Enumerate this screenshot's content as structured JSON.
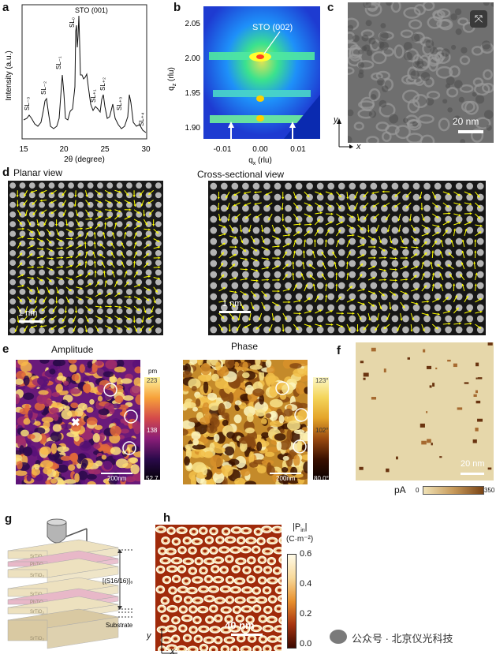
{
  "panels": {
    "a": {
      "letter": "a",
      "ylabel": "Intensity (a.u.)",
      "xlabel": "2θ (degree)",
      "xticks": [
        "15",
        "20",
        "25",
        "30"
      ],
      "peak_labels": {
        "sto": "STO (001)",
        "sl0": "SL₀",
        "slm1": "SL₋₁",
        "slm2": "SL₋₂",
        "slm3": "SL₋₃",
        "slp1": "SL₊₁",
        "slp2": "SL₊₂",
        "slp3": "SL₊₃",
        "slp4": "SL₊₄"
      }
    },
    "b": {
      "letter": "b",
      "annotation": "STO (002)",
      "ylabel": "q",
      "ylabel_sub": "z",
      "ylabel_unit": " (rlu)",
      "xlabel": "q",
      "xlabel_sub": "x",
      "xlabel_unit": "  (rlu)",
      "yticks": [
        "2.05",
        "2.00",
        "1.95",
        "1.90"
      ],
      "xticks": [
        "-0.01",
        "0.00",
        "0.01"
      ]
    },
    "c": {
      "letter": "c",
      "scale": "20 nm",
      "axis_y": "y",
      "axis_x": "x"
    },
    "d": {
      "letter": "d",
      "planar_title": "Planar view",
      "cross_title": "Cross-sectional view",
      "planar_scale": "1 nm",
      "cross_scale": "1 nm"
    },
    "e": {
      "letter": "e",
      "amp_title": "Amplitude",
      "phase_title": "Phase",
      "amp_scale": "200nm",
      "phase_scale": "200nm",
      "amp_cbar": {
        "unit": "pm",
        "max": "223",
        "mid": "138",
        "min": "52.7"
      },
      "phase_cbar": {
        "max": "123°",
        "mid": "102°",
        "min": "80.0°"
      }
    },
    "f": {
      "letter": "f",
      "scale": "20 nm",
      "cbar_unit": "pA",
      "cbar_min": "0",
      "cbar_max": "350"
    },
    "g": {
      "letter": "g",
      "bracket_label": "[(S16/16)]₈",
      "substrate_label": "Substrate",
      "layer_labels": [
        "SrTiO₃",
        "PbTiO₃",
        "SrTiO₃",
        "SrTiO₃",
        "PbTiO₃",
        "SrTiO₃",
        "SrTiO₃"
      ]
    },
    "h": {
      "letter": "h",
      "cbar_title": "|P",
      "cbar_title_sub": "in",
      "cbar_title_end": "|",
      "cbar_unit": "(C·m⁻²)",
      "cbar_ticks": [
        "0.6",
        "0.4",
        "0.2",
        "0.0"
      ],
      "scale": "40 nm",
      "axis_y": "y",
      "axis_x": "x"
    }
  },
  "watermark": "公众号 · 北京仪光科技",
  "colors": {
    "arrow": "#ffff00",
    "inferno_dark": "#1a0b3a",
    "inferno_bright": "#fbd44a",
    "copper_light": "#e8d9ad",
    "copper_dark": "#5a2c10"
  }
}
